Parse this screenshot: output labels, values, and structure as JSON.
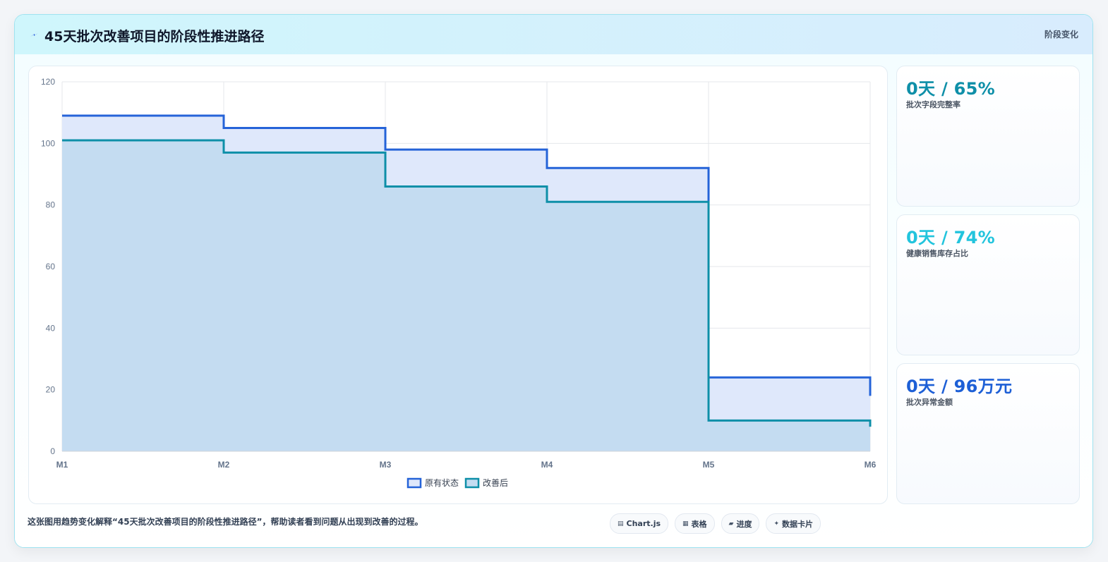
{
  "header": {
    "title": "45天批次改善项目的阶段性推进路径",
    "right_label": "阶段变化",
    "icon": "lightning-icon"
  },
  "chart_data": {
    "type": "line",
    "stepped": true,
    "categories": [
      "M1",
      "M2",
      "M3",
      "M4",
      "M5",
      "M6"
    ],
    "series": [
      {
        "name": "原有状态",
        "values": [
          109,
          105,
          98,
          92,
          24,
          18
        ],
        "color": "#2563d8",
        "fill": "#dfe8fb"
      },
      {
        "name": "改善后",
        "values": [
          101,
          97,
          86,
          81,
          10,
          8
        ],
        "color": "#0e8fa8",
        "fill": "#c4dcf1"
      }
    ],
    "ylim": [
      0,
      120
    ],
    "yticks": [
      0,
      20,
      40,
      60,
      80,
      100,
      120
    ],
    "grid": true,
    "legend": "bottom-center"
  },
  "kpis": [
    {
      "value": "0天 / 65%",
      "label": "批次字段完整率",
      "color": "#0e8fa8"
    },
    {
      "value": "0天 / 74%",
      "label": "健康销售库存占比",
      "color": "#22c4dd"
    },
    {
      "value": "0天 / 96万元",
      "label": "批次异常金额",
      "color": "#1d5fd6"
    }
  ],
  "footer": {
    "note": "这张图用趋势变化解释“45天批次改善项目的阶段性推进路径”，帮助读者看到问题从出现到改善的过程。",
    "chips": [
      {
        "icon": "chart-icon",
        "glyph": "▤",
        "label": "Chart.js"
      },
      {
        "icon": "table-icon",
        "glyph": "▦",
        "label": "表格"
      },
      {
        "icon": "progress-icon",
        "glyph": "▰",
        "label": "进度"
      },
      {
        "icon": "sparkle-icon",
        "glyph": "✦",
        "label": "数据卡片"
      }
    ]
  }
}
